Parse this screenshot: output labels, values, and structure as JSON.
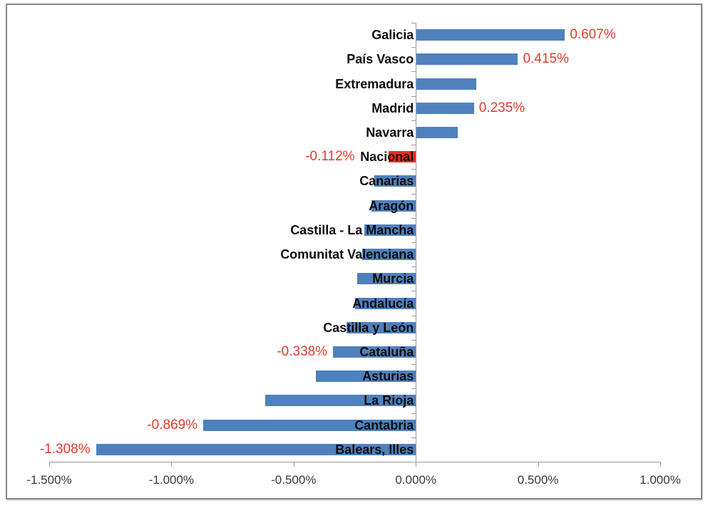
{
  "chart_data": {
    "type": "bar",
    "orientation": "horizontal",
    "title": "",
    "xlabel": "",
    "ylabel": "",
    "grid": "off",
    "legend": "none",
    "xlim": [
      -1.5,
      1.0
    ],
    "x_tick_values": [
      -1.5,
      -1.0,
      -0.5,
      0.0,
      0.5,
      1.0
    ],
    "x_tick_labels": [
      "-1.500%",
      "-1.000%",
      "-0.500%",
      "0.000%",
      "0.500%",
      "1.000%"
    ],
    "categories": [
      "Galicia",
      "País Vasco",
      "Extremadura",
      "Madrid",
      "Navarra",
      "Nacional",
      "Canarias",
      "Aragón",
      "Castilla - La Mancha",
      "Comunitat Valenciana",
      "Murcia",
      "Andalucía",
      "Castilla y León",
      "Cataluña",
      "Asturias",
      "La Rioja",
      "Cantabria",
      "Balears, Illes"
    ],
    "values": [
      0.607,
      0.415,
      0.245,
      0.235,
      0.17,
      -0.112,
      -0.17,
      -0.18,
      -0.21,
      -0.22,
      -0.24,
      -0.25,
      -0.285,
      -0.338,
      -0.41,
      -0.615,
      -0.869,
      -1.308
    ],
    "data_labels": [
      "0.607%",
      "0.415%",
      "",
      "0.235%",
      "",
      "-0.112%",
      "",
      "",
      "",
      "",
      "",
      "",
      "",
      "-0.338%",
      "",
      "",
      "-0.869%",
      "-1.308%"
    ],
    "highlight_category": "Nacional",
    "colors": {
      "bar": "#4f81bd",
      "highlight_bar": "#fb2916",
      "data_label": "#e23b2e",
      "category_label": "#0d0d0d",
      "axis_line": "#9b9b9b",
      "tick_label": "#3a3a3a",
      "frame_border": "#878787"
    }
  }
}
